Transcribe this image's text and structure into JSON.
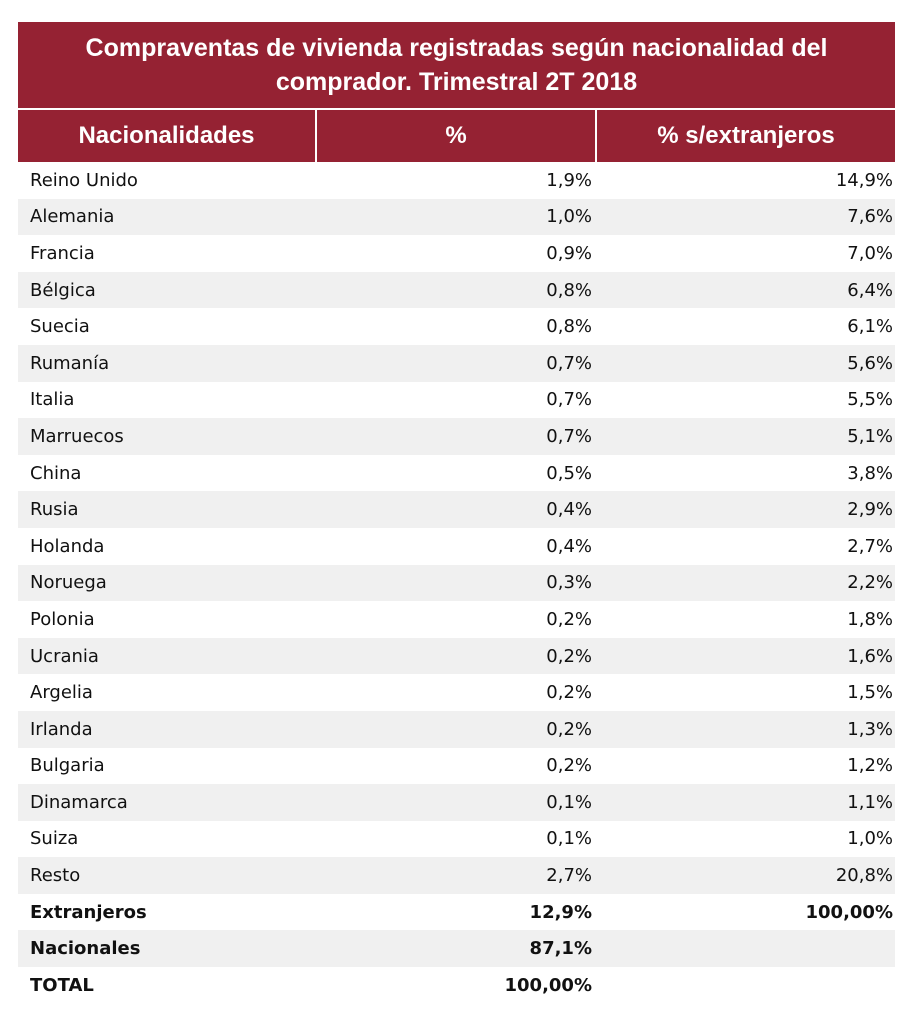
{
  "title": "Compraventas de vivienda registradas según nacionalidad del comprador. Trimestral 2T 2018",
  "accent_color": "#952233",
  "headers": [
    "Nacionalidades",
    "%",
    "% s/extranjeros"
  ],
  "rows": [
    {
      "name": "Reino Unido",
      "pct": "1,9%",
      "pct_ext": "14,9%"
    },
    {
      "name": "Alemania",
      "pct": "1,0%",
      "pct_ext": "7,6%"
    },
    {
      "name": "Francia",
      "pct": "0,9%",
      "pct_ext": "7,0%"
    },
    {
      "name": "Bélgica",
      "pct": "0,8%",
      "pct_ext": "6,4%"
    },
    {
      "name": "Suecia",
      "pct": "0,8%",
      "pct_ext": "6,1%"
    },
    {
      "name": "Rumanía",
      "pct": "0,7%",
      "pct_ext": "5,6%"
    },
    {
      "name": "Italia",
      "pct": "0,7%",
      "pct_ext": "5,5%"
    },
    {
      "name": "Marruecos",
      "pct": "0,7%",
      "pct_ext": "5,1%"
    },
    {
      "name": "China",
      "pct": "0,5%",
      "pct_ext": "3,8%"
    },
    {
      "name": "Rusia",
      "pct": "0,4%",
      "pct_ext": "2,9%"
    },
    {
      "name": "Holanda",
      "pct": "0,4%",
      "pct_ext": "2,7%"
    },
    {
      "name": "Noruega",
      "pct": "0,3%",
      "pct_ext": "2,2%"
    },
    {
      "name": "Polonia",
      "pct": "0,2%",
      "pct_ext": "1,8%"
    },
    {
      "name": "Ucrania",
      "pct": "0,2%",
      "pct_ext": "1,6%"
    },
    {
      "name": "Argelia",
      "pct": "0,2%",
      "pct_ext": "1,5%"
    },
    {
      "name": "Irlanda",
      "pct": "0,2%",
      "pct_ext": "1,3%"
    },
    {
      "name": "Bulgaria",
      "pct": "0,2%",
      "pct_ext": "1,2%"
    },
    {
      "name": "Dinamarca",
      "pct": "0,1%",
      "pct_ext": "1,1%"
    },
    {
      "name": "Suiza",
      "pct": "0,1%",
      "pct_ext": "1,0%"
    },
    {
      "name": "Resto",
      "pct": "2,7%",
      "pct_ext": "20,8%"
    },
    {
      "name": "Extranjeros",
      "pct": "12,9%",
      "pct_ext": "100,00%",
      "bold": true
    },
    {
      "name": "Nacionales",
      "pct": "87,1%",
      "pct_ext": "",
      "bold": true
    },
    {
      "name": "TOTAL",
      "pct": "100,00%",
      "pct_ext": "",
      "bold": true
    }
  ]
}
